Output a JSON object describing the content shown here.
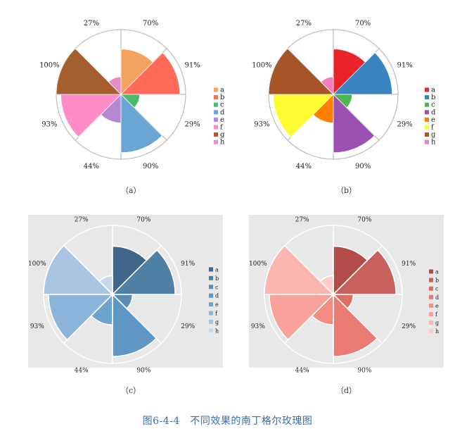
{
  "figure_caption": "图6-4-4　不同效果的南丁格尔玫瑰图",
  "chart_data": [
    {
      "type": "pie",
      "variant": "nightingale-rose",
      "panel_label": "（a）",
      "categories": [
        "a",
        "b",
        "c",
        "d",
        "e",
        "f",
        "g",
        "h"
      ],
      "values": [
        70,
        91,
        29,
        90,
        44,
        93,
        100,
        27
      ],
      "legend": "right",
      "background": "#ffffff",
      "colors": [
        "#f4a460",
        "#ff6b5b",
        "#4cbb6c",
        "#6aa5d4",
        "#b38ad1",
        "#ff8cc6",
        "#a55e2e",
        "#e68ac2"
      ]
    },
    {
      "type": "pie",
      "variant": "nightingale-rose",
      "panel_label": "（b）",
      "categories": [
        "a",
        "b",
        "c",
        "d",
        "e",
        "f",
        "g",
        "h"
      ],
      "values": [
        70,
        91,
        29,
        90,
        44,
        93,
        100,
        27
      ],
      "legend": "right",
      "background": "#ffffff",
      "colors": [
        "#e8232a",
        "#3a84c0",
        "#4cb84f",
        "#9c51b0",
        "#ff8000",
        "#fffb33",
        "#a65628",
        "#f07ec1"
      ]
    },
    {
      "type": "pie",
      "variant": "nightingale-rose",
      "panel_label": "（c）",
      "categories": [
        "a",
        "b",
        "c",
        "d",
        "e",
        "f",
        "g",
        "h"
      ],
      "values": [
        70,
        91,
        29,
        90,
        44,
        93,
        100,
        27
      ],
      "legend": "right",
      "background": "#e8e8e8",
      "colors": [
        "#3e6689",
        "#4f7fa3",
        "#5d8db4",
        "#5e96c4",
        "#6aa4cf",
        "#8ab4d9",
        "#a9c4e0",
        "#cad9ea"
      ]
    },
    {
      "type": "pie",
      "variant": "nightingale-rose",
      "panel_label": "（d）",
      "categories": [
        "a",
        "b",
        "c",
        "d",
        "e",
        "f",
        "g",
        "h"
      ],
      "values": [
        70,
        91,
        29,
        90,
        44,
        93,
        100,
        27
      ],
      "legend": "right",
      "background": "#e8e8e8",
      "colors": [
        "#b24c48",
        "#c9625c",
        "#dd6f63",
        "#ea7a72",
        "#f68b80",
        "#f9a29a",
        "#fbb6b0",
        "#fccdc9"
      ]
    }
  ]
}
